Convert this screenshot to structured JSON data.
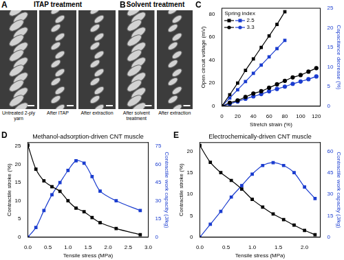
{
  "images": [
    {
      "panel": "A",
      "title": "ITAP treatment",
      "captions": [
        "Untreated 2-ply yarn",
        "After ITAP",
        "After extraction"
      ]
    },
    {
      "panel": "B",
      "title": "Solvent treatment",
      "captions": [
        "After solvent treatment",
        "After extraction"
      ]
    }
  ],
  "chart_data": [
    {
      "panel": "C",
      "type": "line",
      "x_label": "Stretch strain (%)",
      "y_label": "Open circuit voltage (mV)",
      "y2_label": "Capacitance decrease (%)",
      "legend": "upper left",
      "legend_title": "Spring index",
      "xlim": [
        0,
        125
      ],
      "xticks": [
        0,
        20,
        40,
        60,
        80,
        100,
        120
      ],
      "ylim": [
        0,
        85
      ],
      "yticks": [
        0,
        20,
        40,
        60,
        80
      ],
      "y2lim": [
        0,
        25
      ],
      "y2ticks": [
        0,
        5,
        10,
        15,
        20,
        25
      ],
      "series": [
        {
          "name": "2.5",
          "color": "#000000",
          "marker": "square",
          "x": [
            0,
            10,
            20,
            30,
            40,
            50,
            60,
            70,
            80
          ],
          "values": [
            0,
            10,
            20,
            31,
            41,
            51,
            61,
            71,
            82
          ]
        },
        {
          "name": "3.3",
          "color": "#000000",
          "marker": "circle",
          "x": [
            0,
            10,
            20,
            30,
            40,
            50,
            60,
            70,
            80,
            90,
            100,
            110,
            120
          ],
          "values": [
            0,
            3,
            5,
            8,
            11,
            13,
            16,
            19,
            22,
            25,
            27,
            30,
            33
          ]
        },
        {
          "name": "2.5",
          "color": "#1a3ccf",
          "marker": "square",
          "axis": "y2",
          "x": [
            0,
            10,
            20,
            30,
            40,
            50,
            60,
            70,
            80
          ],
          "values": [
            0,
            2.1,
            4.2,
            6.3,
            8.4,
            10.5,
            12.6,
            14.7,
            16.8
          ]
        },
        {
          "name": "3.3",
          "color": "#1a3ccf",
          "marker": "circle",
          "axis": "y2",
          "x": [
            0,
            10,
            20,
            30,
            40,
            50,
            60,
            70,
            80,
            90,
            100,
            110,
            120
          ],
          "values": [
            0,
            0.6,
            1.2,
            1.9,
            2.5,
            3.1,
            3.8,
            4.4,
            5.0,
            5.7,
            6.3,
            6.9,
            7.6
          ]
        }
      ]
    },
    {
      "panel": "D",
      "type": "line",
      "title": "Methanol-adsorption-driven CNT muscle",
      "x_label": "Tensile stress (MPa)",
      "y_label": "Contractile stroke (%)",
      "y2_label": "Contractile work capacity (J/kg)",
      "xlim": [
        0,
        3.0
      ],
      "xticks": [
        {
          "value": 0,
          "label": "0.0"
        },
        0.5,
        {
          "value": 1,
          "label": "1.0"
        },
        1.5,
        {
          "value": 2,
          "label": "2.0"
        },
        2.5,
        {
          "value": 3,
          "label": "3.0"
        }
      ],
      "ylim": [
        0,
        26
      ],
      "yticks": [
        0,
        5,
        10,
        15,
        20,
        25
      ],
      "y2lim": [
        0,
        78
      ],
      "y2ticks": [
        0,
        15,
        30,
        45,
        60,
        75
      ],
      "x": [
        0,
        0.2,
        0.4,
        0.6,
        0.8,
        1.0,
        1.2,
        1.4,
        1.6,
        1.8,
        2.2,
        2.8
      ],
      "series": [
        {
          "color": "#000000",
          "marker": "square",
          "values": [
            25.3,
            18.7,
            15.5,
            13.9,
            12.6,
            10.0,
            8.0,
            7.0,
            5.4,
            4.0,
            2.4,
            0.7
          ]
        },
        {
          "color": "#1a3ccf",
          "marker": "square",
          "axis": "y2",
          "values": [
            0,
            8,
            22,
            35,
            45,
            55,
            63,
            61,
            50,
            38,
            30,
            22
          ]
        }
      ]
    },
    {
      "panel": "E",
      "type": "line",
      "title": "Electrochemically-driven CNT muscle",
      "x_label": "Tensile stress (MPa)",
      "y_label": "Contractile stroke (%)",
      "y2_label": "Contractile work capacity (J/kg)",
      "xlim": [
        0,
        2.3
      ],
      "xticks": [
        {
          "value": 0,
          "label": "0.0"
        },
        0.5,
        {
          "value": 1,
          "label": "1.0"
        },
        1.5,
        {
          "value": 2,
          "label": "2.0"
        }
      ],
      "ylim": [
        0,
        22
      ],
      "yticks": [
        0,
        5,
        10,
        15,
        20
      ],
      "y2lim": [
        0,
        66
      ],
      "y2ticks": [
        0,
        15,
        30,
        45,
        60
      ],
      "x": [
        0,
        0.2,
        0.4,
        0.6,
        0.8,
        1.0,
        1.2,
        1.4,
        1.6,
        1.8,
        2.0,
        2.2
      ],
      "series": [
        {
          "color": "#000000",
          "marker": "square",
          "values": [
            21.3,
            17.4,
            15.0,
            13.2,
            11.2,
            8.8,
            7.0,
            5.4,
            4.1,
            2.8,
            1.6,
            0.6
          ]
        },
        {
          "color": "#1a3ccf",
          "marker": "square",
          "axis": "y2",
          "values": [
            0,
            9,
            18,
            28,
            36,
            44,
            50,
            52,
            50,
            45,
            35,
            27
          ]
        }
      ]
    }
  ]
}
